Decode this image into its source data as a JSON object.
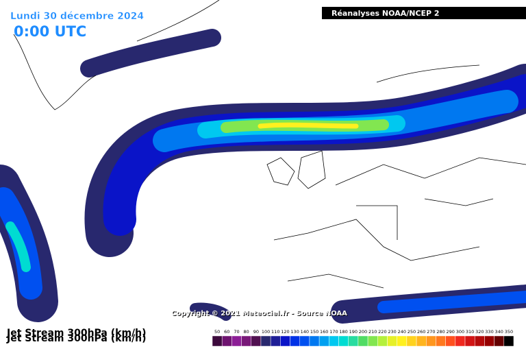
{
  "header": {
    "date": "Lundi 30 décembre 2024",
    "time": "0:00 UTC",
    "source_box": "Réanalyses NOAA/NCEP 2"
  },
  "copyright": "Copyright © 2021 Meteociel.fr - Source NOAA",
  "footer": {
    "title": "Jet Stream 300hPa (km/h)"
  },
  "legend": {
    "items": [
      {
        "label": 50,
        "color": "#3c0a3c"
      },
      {
        "label": 60,
        "color": "#6e1470"
      },
      {
        "label": 70,
        "color": "#8c1e96"
      },
      {
        "label": 80,
        "color": "#781878"
      },
      {
        "label": 90,
        "color": "#501050"
      },
      {
        "label": 100,
        "color": "#28286e"
      },
      {
        "label": 110,
        "color": "#1e1e96"
      },
      {
        "label": 120,
        "color": "#0a14c8"
      },
      {
        "label": 130,
        "color": "#0032e6"
      },
      {
        "label": 140,
        "color": "#0050f0"
      },
      {
        "label": 150,
        "color": "#0078f0"
      },
      {
        "label": 160,
        "color": "#00a0f0"
      },
      {
        "label": 170,
        "color": "#00c8f0"
      },
      {
        "label": 180,
        "color": "#00dcd2"
      },
      {
        "label": 190,
        "color": "#28dca0"
      },
      {
        "label": 200,
        "color": "#50dc64"
      },
      {
        "label": 210,
        "color": "#82e650"
      },
      {
        "label": 220,
        "color": "#b4f03c"
      },
      {
        "label": 230,
        "color": "#e6f028"
      },
      {
        "label": 240,
        "color": "#fff01e"
      },
      {
        "label": 250,
        "color": "#ffd21e"
      },
      {
        "label": 260,
        "color": "#ffb41e"
      },
      {
        "label": 270,
        "color": "#ff961e"
      },
      {
        "label": 280,
        "color": "#ff781e"
      },
      {
        "label": 290,
        "color": "#ff501e"
      },
      {
        "label": 300,
        "color": "#f0281e"
      },
      {
        "label": 310,
        "color": "#d21414"
      },
      {
        "label": 320,
        "color": "#b40a0a"
      },
      {
        "label": 330,
        "color": "#960000"
      },
      {
        "label": 340,
        "color": "#640000"
      },
      {
        "label": 350,
        "color": "#000000"
      }
    ]
  }
}
